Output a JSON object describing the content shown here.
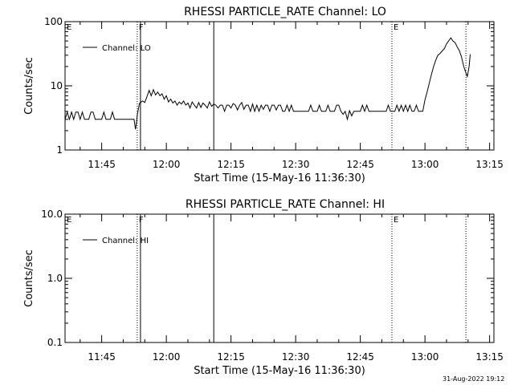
{
  "chart_data": [
    {
      "type": "line",
      "title": "RHESSI PARTICLE_RATE Channel: LO",
      "xlabel": "Start Time (15-May-16 11:36:30)",
      "ylabel": "Counts/sec",
      "yscale": "log",
      "ylim": [
        1,
        100
      ],
      "y_ticks": [
        "1",
        "10",
        "100"
      ],
      "x_ticks": [
        "11:45",
        "12:00",
        "12:15",
        "12:30",
        "12:45",
        "13:00",
        "13:15"
      ],
      "xlim": [
        "11:36:30",
        "13:16:00"
      ],
      "legend": {
        "label": "Channel: LO",
        "placement": "top-left"
      },
      "markers": [
        {
          "label": "E",
          "time": "11:36:30",
          "style": "dotted"
        },
        {
          "label": "F",
          "time": "11:53:15",
          "style": "dotted"
        },
        {
          "label": "",
          "time": "11:54:00",
          "style": "solid"
        },
        {
          "label": "",
          "time": "12:11:00",
          "style": "solid"
        },
        {
          "label": "E",
          "time": "12:52:20",
          "style": "dotted"
        },
        {
          "label": "",
          "time": "13:09:30",
          "style": "dotted"
        }
      ],
      "series": [
        {
          "name": "Channel: LO",
          "points": [
            [
              "11:36:30",
              3
            ],
            [
              "11:37:00",
              3.9
            ],
            [
              "11:37:30",
              3
            ],
            [
              "11:38:00",
              3.9
            ],
            [
              "11:38:30",
              3
            ],
            [
              "11:39:00",
              3.9
            ],
            [
              "11:39:30",
              3.9
            ],
            [
              "11:40:00",
              3
            ],
            [
              "11:40:30",
              3.9
            ],
            [
              "11:41:00",
              3
            ],
            [
              "11:42:00",
              3
            ],
            [
              "11:42:30",
              3.9
            ],
            [
              "11:43:00",
              3.9
            ],
            [
              "11:43:30",
              3
            ],
            [
              "11:44:00",
              3
            ],
            [
              "11:45:00",
              3
            ],
            [
              "11:45:30",
              3.9
            ],
            [
              "11:46:00",
              3
            ],
            [
              "11:47:00",
              3
            ],
            [
              "11:47:30",
              3.9
            ],
            [
              "11:48:00",
              3
            ],
            [
              "11:49:00",
              3
            ],
            [
              "11:50:00",
              3
            ],
            [
              "11:51:00",
              3
            ],
            [
              "11:52:00",
              3
            ],
            [
              "11:52:30",
              3
            ],
            [
              "11:52:50",
              2.1
            ],
            [
              "11:53:00",
              2.5
            ],
            [
              "11:53:15",
              3.5
            ],
            [
              "11:53:45",
              5.3
            ],
            [
              "11:54:00",
              5.5
            ],
            [
              "11:54:30",
              5.8
            ],
            [
              "11:55:00",
              5.5
            ],
            [
              "11:55:30",
              6.8
            ],
            [
              "11:56:00",
              8.5
            ],
            [
              "11:56:30",
              7
            ],
            [
              "11:57:00",
              8.7
            ],
            [
              "11:57:30",
              7.2
            ],
            [
              "11:58:00",
              8
            ],
            [
              "11:58:30",
              7
            ],
            [
              "11:59:00",
              7.5
            ],
            [
              "11:59:30",
              6.2
            ],
            [
              "12:00:00",
              7
            ],
            [
              "12:00:30",
              5.6
            ],
            [
              "12:01:00",
              6.2
            ],
            [
              "12:01:30",
              5.4
            ],
            [
              "12:02:00",
              5.8
            ],
            [
              "12:02:30",
              5
            ],
            [
              "12:03:00",
              5.6
            ],
            [
              "12:03:30",
              5.2
            ],
            [
              "12:04:00",
              5.8
            ],
            [
              "12:04:30",
              5
            ],
            [
              "12:05:00",
              5.4
            ],
            [
              "12:05:30",
              4.5
            ],
            [
              "12:06:00",
              5.6
            ],
            [
              "12:06:30",
              5
            ],
            [
              "12:07:00",
              4.5
            ],
            [
              "12:07:30",
              5.5
            ],
            [
              "12:08:00",
              4.6
            ],
            [
              "12:08:30",
              5.4
            ],
            [
              "12:09:00",
              5
            ],
            [
              "12:09:30",
              4.5
            ],
            [
              "12:10:00",
              5.6
            ],
            [
              "12:10:30",
              4.8
            ],
            [
              "12:11:00",
              5.2
            ],
            [
              "12:11:30",
              5
            ],
            [
              "12:12:00",
              4.5
            ],
            [
              "12:12:30",
              5
            ],
            [
              "12:13:00",
              5
            ],
            [
              "12:13:30",
              4
            ],
            [
              "12:14:00",
              5
            ],
            [
              "12:14:30",
              5
            ],
            [
              "12:15:00",
              4.5
            ],
            [
              "12:15:30",
              5.3
            ],
            [
              "12:16:00",
              5
            ],
            [
              "12:16:30",
              4.2
            ],
            [
              "12:17:00",
              5
            ],
            [
              "12:17:30",
              5.5
            ],
            [
              "12:18:00",
              4.3
            ],
            [
              "12:18:30",
              5
            ],
            [
              "12:19:00",
              5
            ],
            [
              "12:19:30",
              4
            ],
            [
              "12:20:00",
              5.2
            ],
            [
              "12:20:30",
              4
            ],
            [
              "12:21:00",
              5
            ],
            [
              "12:21:30",
              4
            ],
            [
              "12:22:00",
              5
            ],
            [
              "12:22:30",
              4.3
            ],
            [
              "12:23:00",
              5
            ],
            [
              "12:23:30",
              5
            ],
            [
              "12:24:00",
              4
            ],
            [
              "12:24:30",
              5
            ],
            [
              "12:25:00",
              5
            ],
            [
              "12:25:30",
              4.2
            ],
            [
              "12:26:00",
              5
            ],
            [
              "12:26:30",
              5
            ],
            [
              "12:27:00",
              4
            ],
            [
              "12:27:30",
              4
            ],
            [
              "12:28:00",
              5
            ],
            [
              "12:28:30",
              4
            ],
            [
              "12:29:00",
              5
            ],
            [
              "12:29:30",
              4
            ],
            [
              "12:30:00",
              4
            ],
            [
              "12:31:00",
              4
            ],
            [
              "12:32:00",
              4
            ],
            [
              "12:33:00",
              4
            ],
            [
              "12:33:30",
              5
            ],
            [
              "12:34:00",
              4
            ],
            [
              "12:35:00",
              4
            ],
            [
              "12:35:30",
              5
            ],
            [
              "12:36:00",
              4
            ],
            [
              "12:37:00",
              4
            ],
            [
              "12:37:30",
              5
            ],
            [
              "12:38:00",
              4
            ],
            [
              "12:39:00",
              4
            ],
            [
              "12:39:30",
              5
            ],
            [
              "12:40:00",
              5
            ],
            [
              "12:40:30",
              4
            ],
            [
              "12:41:00",
              3.6
            ],
            [
              "12:41:30",
              4
            ],
            [
              "12:42:00",
              3
            ],
            [
              "12:42:30",
              4.1
            ],
            [
              "12:43:00",
              3.4
            ],
            [
              "12:43:30",
              4
            ],
            [
              "12:44:00",
              4
            ],
            [
              "12:45:00",
              4
            ],
            [
              "12:45:30",
              5
            ],
            [
              "12:46:00",
              4
            ],
            [
              "12:46:30",
              5
            ],
            [
              "12:47:00",
              4
            ],
            [
              "12:48:00",
              4
            ],
            [
              "12:49:00",
              4
            ],
            [
              "12:50:00",
              4
            ],
            [
              "12:51:00",
              4
            ],
            [
              "12:51:30",
              5
            ],
            [
              "12:52:00",
              4
            ],
            [
              "12:53:00",
              4
            ],
            [
              "12:53:30",
              5
            ],
            [
              "12:54:00",
              4
            ],
            [
              "12:54:30",
              5
            ],
            [
              "12:55:00",
              4
            ],
            [
              "12:55:30",
              5
            ],
            [
              "12:56:00",
              4
            ],
            [
              "12:56:30",
              5
            ],
            [
              "12:57:00",
              4
            ],
            [
              "12:57:30",
              4
            ],
            [
              "12:58:00",
              5
            ],
            [
              "12:58:30",
              4
            ],
            [
              "12:59:00",
              4
            ],
            [
              "12:59:30",
              4
            ],
            [
              "13:00:00",
              6
            ],
            [
              "13:00:30",
              8
            ],
            [
              "13:01:00",
              11
            ],
            [
              "13:01:30",
              15
            ],
            [
              "13:02:00",
              20
            ],
            [
              "13:02:30",
              25
            ],
            [
              "13:03:00",
              30
            ],
            [
              "13:03:30",
              32
            ],
            [
              "13:04:00",
              35
            ],
            [
              "13:04:30",
              38
            ],
            [
              "13:05:00",
              45
            ],
            [
              "13:05:30",
              50
            ],
            [
              "13:06:00",
              56
            ],
            [
              "13:06:30",
              50
            ],
            [
              "13:07:00",
              47
            ],
            [
              "13:07:30",
              40
            ],
            [
              "13:08:00",
              35
            ],
            [
              "13:08:30",
              28
            ],
            [
              "13:09:00",
              20
            ],
            [
              "13:09:30",
              16
            ],
            [
              "13:09:50",
              14
            ],
            [
              "13:10:15",
              20
            ],
            [
              "13:10:30",
              31
            ]
          ]
        }
      ]
    },
    {
      "type": "line",
      "title": "RHESSI PARTICLE_RATE Channel: HI",
      "xlabel": "Start Time (15-May-16 11:36:30)",
      "ylabel": "Counts/sec",
      "yscale": "log",
      "ylim": [
        0.1,
        10
      ],
      "y_ticks": [
        "0.1",
        "1.0",
        "10.0"
      ],
      "x_ticks": [
        "11:45",
        "12:00",
        "12:15",
        "12:30",
        "12:45",
        "13:00",
        "13:15"
      ],
      "xlim": [
        "11:36:30",
        "13:16:00"
      ],
      "legend": {
        "label": "Channel: HI",
        "placement": "top-left"
      },
      "markers": [
        {
          "label": "E",
          "time": "11:36:30",
          "style": "dotted"
        },
        {
          "label": "F",
          "time": "11:53:15",
          "style": "dotted"
        },
        {
          "label": "",
          "time": "11:54:00",
          "style": "solid"
        },
        {
          "label": "",
          "time": "12:11:00",
          "style": "solid"
        },
        {
          "label": "E",
          "time": "12:52:20",
          "style": "dotted"
        },
        {
          "label": "",
          "time": "13:09:30",
          "style": "dotted"
        }
      ],
      "series": [
        {
          "name": "Channel: HI",
          "points": []
        }
      ]
    }
  ],
  "footer": {
    "timestamp": "31-Aug-2022 19:12"
  }
}
